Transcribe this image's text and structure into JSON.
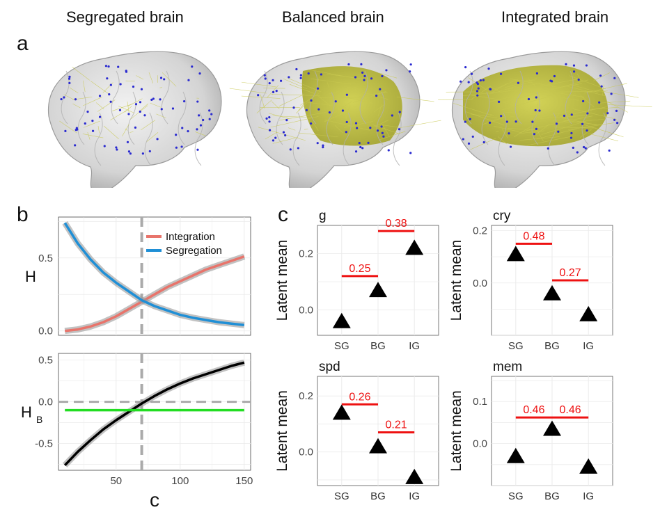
{
  "panel_letters": {
    "a": "a",
    "b": "b",
    "c": "c"
  },
  "brains": [
    {
      "title": "Segregated brain"
    },
    {
      "title": "Balanced brain"
    },
    {
      "title": "Integrated brain"
    }
  ],
  "colors": {
    "integration": "#e8746b",
    "segregation": "#1f8fd6",
    "balance_line": "#000000",
    "threshold_line": "#22dd22",
    "diff_bar": "#ee1111",
    "brain_glass": "#d8d8d8",
    "brain_highlight": "#c9c93a",
    "node": "#2a2ad0"
  },
  "chart_data": [
    {
      "type": "line",
      "panel": "b-top",
      "xlabel": "",
      "ylabel": "H",
      "xlim": [
        5,
        155
      ],
      "ylim": [
        -0.03,
        0.78
      ],
      "yticks": [
        0.0,
        0.5
      ],
      "ytick_labels": [
        "0.0",
        "0.5"
      ],
      "grid": true,
      "legend_position": "top-right",
      "vline": {
        "x": 70,
        "style": "dashed"
      },
      "x": [
        10,
        20,
        30,
        40,
        50,
        60,
        70,
        80,
        90,
        100,
        110,
        120,
        130,
        140,
        150
      ],
      "series": [
        {
          "name": "Integration",
          "values": [
            0.0,
            0.01,
            0.03,
            0.06,
            0.1,
            0.15,
            0.2,
            0.25,
            0.3,
            0.34,
            0.38,
            0.42,
            0.45,
            0.48,
            0.51
          ]
        },
        {
          "name": "Segregation",
          "values": [
            0.74,
            0.6,
            0.49,
            0.4,
            0.33,
            0.27,
            0.21,
            0.17,
            0.14,
            0.11,
            0.09,
            0.075,
            0.06,
            0.05,
            0.04
          ]
        }
      ]
    },
    {
      "type": "line",
      "panel": "b-bottom",
      "xlabel": "c",
      "ylabel": "H",
      "ylabel_sub": "B",
      "xlim": [
        5,
        155
      ],
      "ylim": [
        -0.82,
        0.58
      ],
      "xticks": [
        50,
        100,
        150
      ],
      "xtick_labels": [
        "50",
        "100",
        "150"
      ],
      "yticks": [
        0.5,
        0.0,
        -0.5
      ],
      "ytick_labels": [
        "0.5",
        "0.0",
        "-0.5"
      ],
      "grid": true,
      "vline": {
        "x": 70,
        "style": "dashed"
      },
      "hline_dashed": 0.0,
      "x": [
        10,
        20,
        30,
        40,
        50,
        60,
        70,
        80,
        90,
        100,
        110,
        120,
        130,
        140,
        150
      ],
      "series": [
        {
          "values": [
            -0.76,
            -0.6,
            -0.46,
            -0.33,
            -0.22,
            -0.12,
            -0.02,
            0.07,
            0.15,
            0.22,
            0.28,
            0.33,
            0.38,
            0.43,
            0.47
          ]
        },
        {
          "values": [
            -0.1,
            -0.1,
            -0.1,
            -0.1,
            -0.1,
            -0.1,
            -0.1,
            -0.1,
            -0.1,
            -0.1,
            -0.1,
            -0.1,
            -0.1,
            -0.1,
            -0.1
          ]
        }
      ]
    },
    {
      "type": "scatter",
      "panel": "c-g",
      "title": "g",
      "ylabel": "Latent mean",
      "categories": [
        "SG",
        "BG",
        "IG"
      ],
      "values": [
        -0.04,
        0.07,
        0.22
      ],
      "ylim": [
        -0.09,
        0.3
      ],
      "yticks": [
        0.0,
        0.2
      ],
      "ytick_labels": [
        "0.0",
        "0.2"
      ],
      "bars": [
        {
          "from": 0,
          "to": 1,
          "y": 0.12,
          "label": "0.25"
        },
        {
          "from": 1,
          "to": 2,
          "y": 0.28,
          "label": "0.38"
        }
      ]
    },
    {
      "type": "scatter",
      "panel": "c-cry",
      "title": "cry",
      "ylabel": "Latent mean",
      "categories": [
        "SG",
        "BG",
        "IG"
      ],
      "values": [
        0.11,
        -0.04,
        -0.12
      ],
      "ylim": [
        -0.2,
        0.22
      ],
      "yticks": [
        0.2,
        0.0
      ],
      "ytick_labels": [
        "0.2",
        "0.0"
      ],
      "bars": [
        {
          "from": 0,
          "to": 1,
          "y": 0.15,
          "label": "0.48"
        },
        {
          "from": 1,
          "to": 2,
          "y": 0.01,
          "label": "0.27"
        }
      ]
    },
    {
      "type": "scatter",
      "panel": "c-spd",
      "title": "spd",
      "ylabel": "Latent mean",
      "categories": [
        "SG",
        "BG",
        "IG"
      ],
      "values": [
        0.14,
        0.02,
        -0.09
      ],
      "ylim": [
        -0.12,
        0.27
      ],
      "yticks": [
        0.2,
        0.0
      ],
      "ytick_labels": [
        "0.2",
        "0.0"
      ],
      "bars": [
        {
          "from": 0,
          "to": 1,
          "y": 0.17,
          "label": "0.26"
        },
        {
          "from": 1,
          "to": 2,
          "y": 0.07,
          "label": "0.21"
        }
      ]
    },
    {
      "type": "scatter",
      "panel": "c-mem",
      "title": "mem",
      "ylabel": "Latent mean",
      "categories": [
        "SG",
        "BG",
        "IG"
      ],
      "values": [
        -0.03,
        0.035,
        -0.055
      ],
      "ylim": [
        -0.1,
        0.16
      ],
      "yticks": [
        0.1,
        0.0
      ],
      "ytick_labels": [
        "0.1",
        "0.0"
      ],
      "bars": [
        {
          "from": 0,
          "to": 1,
          "y": 0.062,
          "label": "0.46"
        },
        {
          "from": 1,
          "to": 2,
          "y": 0.062,
          "label": "0.46"
        }
      ]
    }
  ]
}
